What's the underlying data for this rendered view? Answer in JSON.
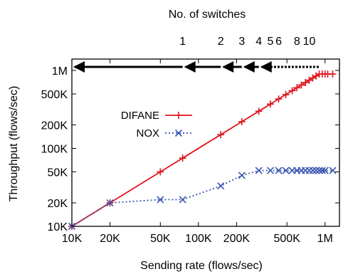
{
  "chart_data": {
    "type": "line",
    "title": "",
    "xlabel": "Sending rate (flows/sec)",
    "ylabel": "Throughput (flows/sec)",
    "x_scale": "log",
    "y_scale": "log",
    "xlim": [
      10000,
      1300000
    ],
    "ylim": [
      10000,
      1400000
    ],
    "x_ticks": [
      {
        "value": 10000,
        "label": "10K"
      },
      {
        "value": 20000,
        "label": "20K"
      },
      {
        "value": 50000,
        "label": "50K"
      },
      {
        "value": 100000,
        "label": "100K"
      },
      {
        "value": 200000,
        "label": "200K"
      },
      {
        "value": 500000,
        "label": "500K"
      },
      {
        "value": 1000000,
        "label": "1M"
      }
    ],
    "y_ticks": [
      {
        "value": 10000,
        "label": "10K"
      },
      {
        "value": 20000,
        "label": "20K"
      },
      {
        "value": 50000,
        "label": "50K"
      },
      {
        "value": 100000,
        "label": "100K"
      },
      {
        "value": 200000,
        "label": "200K"
      },
      {
        "value": 500000,
        "label": "500K"
      },
      {
        "value": 1000000,
        "label": "1M"
      }
    ],
    "legend_position": "center-left",
    "series": [
      {
        "name": "DIFANE",
        "color": "#e0151d",
        "line_style": "solid",
        "marker": "plus",
        "x": [
          10000,
          20000,
          50000,
          75000,
          150000,
          220000,
          300000,
          370000,
          430000,
          490000,
          550000,
          600000,
          650000,
          700000,
          750000,
          800000,
          850000,
          900000,
          950000,
          1000000,
          1050000,
          1150000
        ],
        "y": [
          10000,
          20000,
          50000,
          75000,
          150000,
          220000,
          300000,
          370000,
          430000,
          490000,
          550000,
          600000,
          650000,
          700000,
          750000,
          800000,
          850000,
          900000,
          900000,
          900000,
          900000,
          900000
        ]
      },
      {
        "name": "NOX",
        "color": "#3a56b0",
        "line_style": "dotted",
        "marker": "x",
        "x": [
          10000,
          20000,
          50000,
          75000,
          150000,
          220000,
          300000,
          370000,
          430000,
          490000,
          550000,
          600000,
          650000,
          700000,
          750000,
          800000,
          850000,
          900000,
          950000,
          1000000,
          1150000
        ],
        "y": [
          10000,
          20000,
          22000,
          22000,
          33000,
          45000,
          52000,
          52000,
          52000,
          52000,
          52000,
          52000,
          52000,
          52000,
          52000,
          52000,
          52000,
          52000,
          52000,
          52000,
          52000
        ]
      }
    ],
    "top_axis": {
      "label": "No. of switches",
      "ticks": [
        {
          "label": "1",
          "x": 75000
        },
        {
          "label": "2",
          "x": 150000
        },
        {
          "label": "3",
          "x": 220000
        },
        {
          "label": "4",
          "x": 300000
        },
        {
          "label": "5",
          "x": 370000
        },
        {
          "label": "6",
          "x": 430000
        },
        {
          "label": "8",
          "x": 600000
        },
        {
          "label": "10",
          "x": 750000
        }
      ]
    },
    "arrows_x_start": 1000000,
    "arrows_x_end": 10000
  }
}
